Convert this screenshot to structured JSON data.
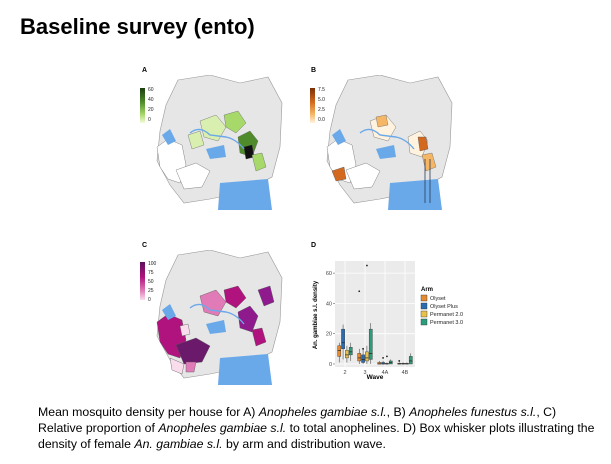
{
  "slide": {
    "title": "Baseline survey (ento)"
  },
  "panels": [
    {
      "id": "A",
      "legend_ticks": [
        "60",
        "40",
        "20",
        "0"
      ],
      "colors": [
        "#1b3d0f",
        "#4f8b2a",
        "#a7d86a",
        "#f3fbd9"
      ]
    },
    {
      "id": "B",
      "legend_ticks": [
        "7.5",
        "5.0",
        "2.5",
        "0.0"
      ],
      "colors": [
        "#7a2f05",
        "#d2691e",
        "#f5b765",
        "#fff3df"
      ]
    },
    {
      "id": "C",
      "legend_ticks": [
        "100",
        "75",
        "50",
        "25",
        "0"
      ],
      "colors": [
        "#5e0f5e",
        "#b0127e",
        "#e07bb7",
        "#f9dded"
      ]
    },
    {
      "id": "D"
    }
  ],
  "chart_data": {
    "type": "box",
    "categories": [
      "2",
      "3",
      "4A",
      "4B"
    ],
    "xlabel": "Wave",
    "ylabel": "An. gambiae s.l. density",
    "yticks": [
      0,
      20,
      40,
      60
    ],
    "ylim": [
      -2,
      68
    ],
    "legend": {
      "title": "Arm",
      "placement": "right"
    },
    "series": [
      {
        "name": "Olyset",
        "color": "#e58a2e",
        "boxes": [
          {
            "q1": 5,
            "median": 9,
            "q3": 12,
            "whislo": 1,
            "whishi": 14
          },
          {
            "q1": 2,
            "median": 4,
            "q3": 7,
            "whislo": 0,
            "whishi": 10
          },
          {
            "q1": 0,
            "median": 0,
            "q3": 1,
            "whislo": 0,
            "whishi": 2
          },
          {
            "q1": 0,
            "median": 0,
            "q3": 0.5,
            "whislo": 0,
            "whishi": 1
          }
        ]
      },
      {
        "name": "Olyset Plus",
        "color": "#2b6cb0",
        "boxes": [
          {
            "q1": 10,
            "median": 14,
            "q3": 23,
            "whislo": 3,
            "whishi": 26
          },
          {
            "q1": 1,
            "median": 3,
            "q3": 6,
            "whislo": 0,
            "whishi": 10
          },
          {
            "q1": 0,
            "median": 0,
            "q3": 1,
            "whislo": 0,
            "whishi": 2
          },
          {
            "q1": 0,
            "median": 0,
            "q3": 0.5,
            "whislo": 0,
            "whishi": 1
          }
        ]
      },
      {
        "name": "Permanet 2.0",
        "color": "#e8c24a",
        "boxes": [
          {
            "q1": 4,
            "median": 6,
            "q3": 9,
            "whislo": 1,
            "whishi": 12
          },
          {
            "q1": 2,
            "median": 4,
            "q3": 8,
            "whislo": 0,
            "whishi": 12
          },
          {
            "q1": 0,
            "median": 0,
            "q3": 0.5,
            "whislo": 0,
            "whishi": 1
          },
          {
            "q1": 0,
            "median": 0,
            "q3": 0.5,
            "whislo": 0,
            "whishi": 1
          }
        ]
      },
      {
        "name": "Permanet 3.0",
        "color": "#2a9d7c",
        "boxes": [
          {
            "q1": 6,
            "median": 8,
            "q3": 11,
            "whislo": 2,
            "whishi": 14
          },
          {
            "q1": 3,
            "median": 7,
            "q3": 23,
            "whislo": 0,
            "whishi": 27
          },
          {
            "q1": 0,
            "median": 1,
            "q3": 2,
            "whislo": 0,
            "whishi": 3
          },
          {
            "q1": 0,
            "median": 2,
            "q3": 5,
            "whislo": 0,
            "whishi": 7
          }
        ]
      }
    ],
    "outliers": [
      {
        "wave": "3",
        "series": "Olyset",
        "value": 48
      },
      {
        "wave": "3",
        "series": "Permanet 2.0",
        "value": 65
      },
      {
        "wave": "3",
        "series": "Olyset Plus",
        "value": 10
      },
      {
        "wave": "4A",
        "series": "Olyset Plus",
        "value": 4
      },
      {
        "wave": "4A",
        "series": "Permanet 2.0",
        "value": 5
      },
      {
        "wave": "4B",
        "series": "Olyset",
        "value": 2
      }
    ]
  },
  "caption": {
    "parts": [
      {
        "text": "Mean mosquito density per house for A) ",
        "italic": false
      },
      {
        "text": "Anopheles gambiae s.l.",
        "italic": true
      },
      {
        "text": ", B) ",
        "italic": false
      },
      {
        "text": "Anopheles funestus s.l.",
        "italic": true
      },
      {
        "text": ", C) Relative proportion of ",
        "italic": false
      },
      {
        "text": "Anopheles gambiae s.l.",
        "italic": true
      },
      {
        "text": " to total anophelines. D) Box whisker plots illustrating the density of female ",
        "italic": false
      },
      {
        "text": "An. gambiae s.l.",
        "italic": true
      },
      {
        "text": " by arm and distribution wave.",
        "italic": false
      }
    ]
  }
}
